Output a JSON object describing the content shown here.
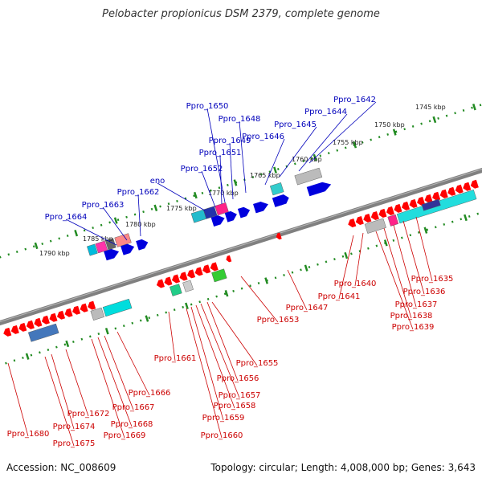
{
  "title": "Pelobacter propionicus DSM 2379, complete genome",
  "accession": "Accession: NC_008609",
  "summary": "Topology: circular; Length: 4,008,000 bp; Genes: 3,643",
  "colors": {
    "plus_label": "#0000bb",
    "minus_label": "#cc0000",
    "backbone": "#808080",
    "tick": "#228b22",
    "forward_gene": "#0000dd",
    "reverse_gene": "#ff0000"
  },
  "kbp_ticks": [
    {
      "label": "1745 kbp"
    },
    {
      "label": "1750 kbp"
    },
    {
      "label": "1755 kbp"
    },
    {
      "label": "1760 kbp"
    },
    {
      "label": "1765 kbp"
    },
    {
      "label": "1770 kbp"
    },
    {
      "label": "1775 kbp"
    },
    {
      "label": "1780 kbp"
    },
    {
      "label": "1785 kbp"
    },
    {
      "label": "1790 kbp"
    }
  ],
  "plus_strand_genes": [
    "Ppro_1642",
    "Ppro_1644",
    "Ppro_1645",
    "Ppro_1646",
    "Ppro_1648",
    "Ppro_1649",
    "Ppro_1650",
    "Ppro_1651",
    "Ppro_1652",
    "eno",
    "Ppro_1662",
    "Ppro_1663",
    "Ppro_1664"
  ],
  "minus_strand_genes": [
    "Ppro_1635",
    "Ppro_1636",
    "Ppro_1637",
    "Ppro_1638",
    "Ppro_1639",
    "Ppro_1640",
    "Ppro_1641",
    "Ppro_1647",
    "Ppro_1653",
    "Ppro_1655",
    "Ppro_1656",
    "Ppro_1657",
    "Ppro_1658",
    "Ppro_1659",
    "Ppro_1660",
    "Ppro_1661",
    "Ppro_1666",
    "Ppro_1667",
    "Ppro_1668",
    "Ppro_1669",
    "Ppro_1672",
    "Ppro_1674",
    "Ppro_1675",
    "Ppro_1680"
  ]
}
